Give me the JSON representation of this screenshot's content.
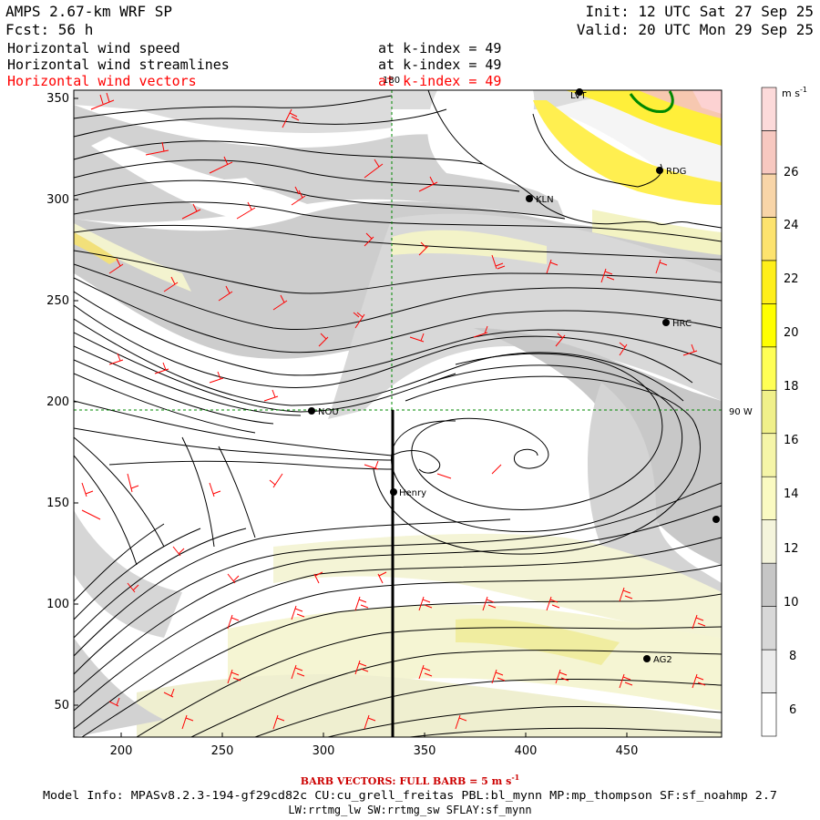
{
  "header": {
    "model_title": "AMPS 2.67-km WRF SP",
    "forecast": "Fcst:   56 h",
    "init": "Init: 12 UTC Sat 27 Sep 25",
    "valid": "Valid: 20 UTC Mon 29 Sep 25",
    "fields": [
      {
        "label": "Horizontal wind speed",
        "level": "at k-index =  49",
        "color": "#000000"
      },
      {
        "label": "Horizontal wind streamlines",
        "level": "at k-index =  49",
        "color": "#000000"
      },
      {
        "label": "Horizontal wind vectors",
        "level": "at k-index =  49",
        "color": "#ff0000"
      }
    ]
  },
  "map": {
    "x_ticks": [
      "200",
      "250",
      "300",
      "350",
      "400",
      "450"
    ],
    "y_ticks": [
      "350",
      "300",
      "250",
      "200",
      "150",
      "100",
      "50"
    ],
    "meridian_label": "180",
    "parallel_label": "90 W",
    "stations": [
      {
        "id": "LVT",
        "label": "LVT"
      },
      {
        "id": "RDG",
        "label": "RDG"
      },
      {
        "id": "KLN",
        "label": "KLN"
      },
      {
        "id": "HRC",
        "label": "HRC"
      },
      {
        "id": "NOU",
        "label": "NOU"
      },
      {
        "id": "Henry",
        "label": "Henry"
      },
      {
        "id": "AG2",
        "label": "AG2"
      },
      {
        "id": "edge",
        "label": ""
      }
    ]
  },
  "colorbar": {
    "units": "m s",
    "units_exp": "-1",
    "tick_labels": [
      "26",
      "24",
      "22",
      "20",
      "18",
      "16",
      "14",
      "12",
      "10",
      "8",
      "6"
    ],
    "colors": [
      "#ffffff",
      "#ececec",
      "#d8d8d8",
      "#c6c6c6",
      "#f4f4dc",
      "#fafac2",
      "#f5f5a8",
      "#f0f08a",
      "#ffff55",
      "#ffff00",
      "#ffef1a",
      "#fde36e",
      "#f8d5a8",
      "#f7c8c0",
      "#fcdada"
    ]
  },
  "footer": {
    "barb_caption": "BARB VECTORS:  FULL BARB = 5 m s",
    "barb_exp": "-1",
    "model_info_1": "Model Info: MPASv8.2.3-194-gf29cd82c CU:cu_grell_freitas PBL:bl_mynn MP:mp_thompson SF:sf_noahmp 2.7",
    "model_info_2": "LW:rrtmg_lw SW:rrtmg_sw SFLAY:sf_mynn"
  }
}
